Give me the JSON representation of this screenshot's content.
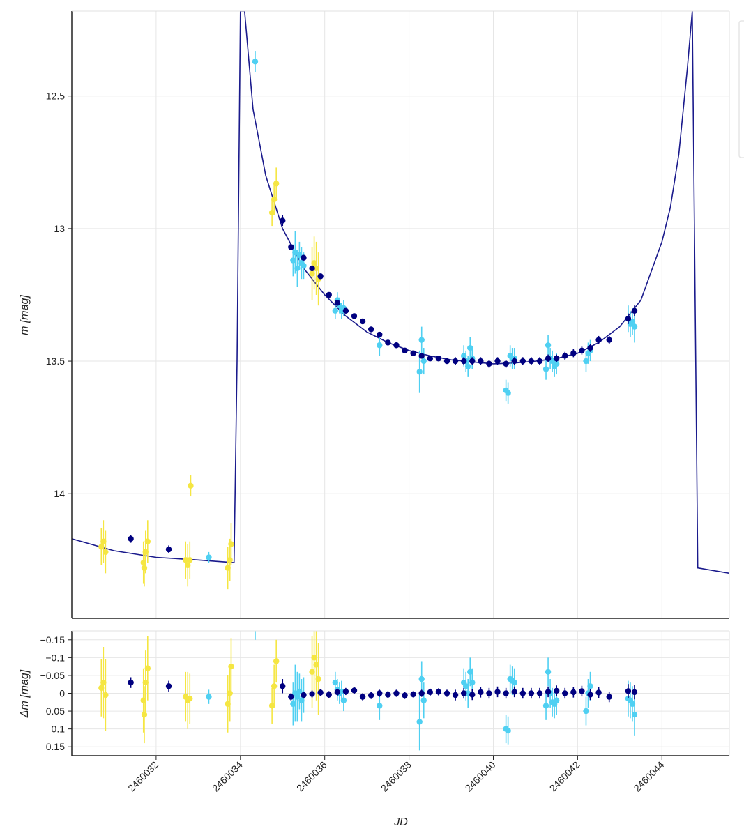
{
  "colors": {
    "model": "#1a1a8c",
    "g_band": "#000080",
    "r_band": "#4fd0f2",
    "i_band": "#f5e642",
    "grid": "#e6e6e6",
    "axis": "#222222",
    "legend_border": "#e5e5e5"
  },
  "chart_data": [
    {
      "type": "scatter",
      "panel": "main",
      "xlabel": "",
      "ylabel": "m [mag]",
      "xlim": [
        2460030.0,
        2460045.6
      ],
      "ylim": [
        14.47,
        12.18
      ],
      "y_inverted": true,
      "x_ticks": [
        2460032,
        2460034,
        2460036,
        2460038,
        2460040,
        2460042,
        2460044
      ],
      "y_ticks": [
        12.5,
        13,
        13.5,
        14
      ],
      "y_tick_labels": [
        "12.5",
        "13",
        "13.5",
        "14"
      ],
      "grid": true,
      "legend": "top-right (cut off)",
      "model_curve": {
        "x": [
          2460030.0,
          2460031.0,
          2460032.0,
          2460033.0,
          2460033.85,
          2460033.92,
          2460034.0,
          2460034.1,
          2460034.3,
          2460034.6,
          2460035.0,
          2460035.5,
          2460036.0,
          2460036.5,
          2460037.0,
          2460037.5,
          2460038.0,
          2460038.5,
          2460039.0,
          2460039.5,
          2460040.0,
          2460040.5,
          2460041.0,
          2460041.5,
          2460042.0,
          2460042.5,
          2460043.0,
          2460043.5,
          2460044.0,
          2460044.2,
          2460044.4,
          2460044.6,
          2460044.72,
          2460044.85,
          2460045.6
        ],
        "y": [
          14.17,
          14.215,
          14.24,
          14.25,
          14.26,
          13.5,
          12.18,
          12.18,
          12.55,
          12.8,
          13.0,
          13.15,
          13.25,
          13.33,
          13.39,
          13.43,
          13.46,
          13.48,
          13.495,
          13.503,
          13.51,
          13.507,
          13.5,
          13.49,
          13.47,
          13.43,
          13.37,
          13.27,
          13.05,
          12.92,
          12.72,
          12.4,
          12.18,
          14.28,
          14.3
        ]
      },
      "series": [
        {
          "band": "g",
          "x": [
            2460031.4,
            2460032.3,
            2460035.0,
            2460035.2,
            2460035.5,
            2460035.7,
            2460035.9,
            2460036.1,
            2460036.3,
            2460036.5,
            2460036.7,
            2460036.9,
            2460037.1,
            2460037.3,
            2460037.5,
            2460037.7,
            2460037.9,
            2460038.1,
            2460038.3,
            2460038.5,
            2460038.7,
            2460038.9,
            2460039.1,
            2460039.3,
            2460039.5,
            2460039.7,
            2460039.9,
            2460040.1,
            2460040.3,
            2460040.5,
            2460040.7,
            2460040.9,
            2460041.1,
            2460041.3,
            2460041.5,
            2460041.7,
            2460041.9,
            2460042.1,
            2460042.3,
            2460042.5,
            2460042.75,
            2460043.2,
            2460043.35
          ],
          "y": [
            14.17,
            14.21,
            12.97,
            13.07,
            13.11,
            13.15,
            13.18,
            13.25,
            13.28,
            13.31,
            13.33,
            13.35,
            13.38,
            13.4,
            13.43,
            13.44,
            13.46,
            13.47,
            13.48,
            13.49,
            13.49,
            13.5,
            13.5,
            13.5,
            13.5,
            13.5,
            13.51,
            13.5,
            13.51,
            13.5,
            13.5,
            13.5,
            13.5,
            13.49,
            13.49,
            13.48,
            13.47,
            13.46,
            13.45,
            13.42,
            13.42,
            13.34,
            13.31
          ],
          "err": [
            0.015,
            0.015,
            0.02,
            0.01,
            0.01,
            0.01,
            0.01,
            0.01,
            0.01,
            0.01,
            0.01,
            0.01,
            0.01,
            0.01,
            0.01,
            0.01,
            0.01,
            0.01,
            0.01,
            0.01,
            0.01,
            0.01,
            0.015,
            0.015,
            0.015,
            0.015,
            0.015,
            0.015,
            0.015,
            0.015,
            0.015,
            0.015,
            0.015,
            0.015,
            0.015,
            0.015,
            0.015,
            0.015,
            0.015,
            0.015,
            0.015,
            0.02,
            0.02
          ]
        },
        {
          "band": "r",
          "x": [
            2460033.25,
            2460034.35,
            2460035.25,
            2460035.3,
            2460035.35,
            2460035.4,
            2460035.45,
            2460035.5,
            2460036.25,
            2460036.3,
            2460036.35,
            2460036.4,
            2460036.45,
            2460037.3,
            2460038.25,
            2460038.3,
            2460038.35,
            2460039.3,
            2460039.35,
            2460039.4,
            2460039.45,
            2460039.5,
            2460040.3,
            2460040.35,
            2460040.4,
            2460040.45,
            2460040.5,
            2460041.25,
            2460041.3,
            2460041.35,
            2460041.4,
            2460041.45,
            2460041.5,
            2460042.2,
            2460042.25,
            2460042.3,
            2460043.2,
            2460043.25,
            2460043.3,
            2460043.35
          ],
          "y": [
            14.24,
            12.37,
            13.12,
            13.09,
            13.15,
            13.1,
            13.13,
            13.14,
            13.31,
            13.27,
            13.29,
            13.31,
            13.3,
            13.44,
            13.54,
            13.42,
            13.5,
            13.48,
            13.5,
            13.52,
            13.45,
            13.49,
            13.61,
            13.62,
            13.48,
            13.49,
            13.49,
            13.53,
            13.44,
            13.49,
            13.5,
            13.52,
            13.51,
            13.5,
            13.47,
            13.46,
            13.34,
            13.36,
            13.35,
            13.37
          ],
          "err": [
            0.02,
            0.04,
            0.06,
            0.08,
            0.07,
            0.05,
            0.06,
            0.05,
            0.03,
            0.03,
            0.03,
            0.03,
            0.03,
            0.04,
            0.08,
            0.05,
            0.05,
            0.04,
            0.04,
            0.04,
            0.04,
            0.04,
            0.04,
            0.04,
            0.04,
            0.04,
            0.04,
            0.04,
            0.04,
            0.04,
            0.04,
            0.04,
            0.04,
            0.04,
            0.04,
            0.04,
            0.05,
            0.05,
            0.05,
            0.06
          ]
        },
        {
          "band": "i",
          "x": [
            2460030.7,
            2460030.75,
            2460030.8,
            2460031.7,
            2460031.75,
            2460031.8,
            2460031.72,
            2460032.7,
            2460032.75,
            2460032.8,
            2460032.82,
            2460033.7,
            2460033.75,
            2460033.78,
            2460034.75,
            2460034.8,
            2460034.85,
            2460035.7,
            2460035.75,
            2460035.8,
            2460035.85
          ],
          "y": [
            14.2,
            14.18,
            14.22,
            14.26,
            14.22,
            14.18,
            14.28,
            14.25,
            14.27,
            14.25,
            13.97,
            14.28,
            14.25,
            14.19,
            12.94,
            12.89,
            12.83,
            13.17,
            13.13,
            13.15,
            13.19
          ],
          "err": [
            0.07,
            0.08,
            0.08,
            0.08,
            0.08,
            0.08,
            0.07,
            0.07,
            0.08,
            0.07,
            0.04,
            0.08,
            0.08,
            0.08,
            0.05,
            0.06,
            0.06,
            0.1,
            0.1,
            0.1,
            0.1
          ]
        }
      ]
    },
    {
      "type": "scatter",
      "panel": "residuals",
      "xlabel": "JD",
      "ylabel": "Δm [mag]",
      "xlim": [
        2460030.0,
        2460045.6
      ],
      "ylim": [
        0.175,
        -0.175
      ],
      "y_inverted": true,
      "x_ticks": [
        2460032,
        2460034,
        2460036,
        2460038,
        2460040,
        2460042,
        2460044
      ],
      "x_tick_labels": [
        "2460032",
        "2460034",
        "2460036",
        "2460038",
        "2460040",
        "2460042",
        "2460044"
      ],
      "y_ticks": [
        -0.15,
        -0.1,
        -0.05,
        0,
        0.05,
        0.1,
        0.15
      ],
      "y_tick_labels": [
        "−0.15",
        "−0.1",
        "−0.05",
        "0",
        "0.05",
        "0.1",
        "0.15"
      ],
      "grid": true,
      "series": [
        {
          "band": "g",
          "x": [
            2460031.4,
            2460032.3,
            2460035.0,
            2460035.2,
            2460035.5,
            2460035.7,
            2460035.9,
            2460036.1,
            2460036.3,
            2460036.5,
            2460036.7,
            2460036.9,
            2460037.1,
            2460037.3,
            2460037.5,
            2460037.7,
            2460037.9,
            2460038.1,
            2460038.3,
            2460038.5,
            2460038.7,
            2460038.9,
            2460039.1,
            2460039.3,
            2460039.5,
            2460039.7,
            2460039.9,
            2460040.1,
            2460040.3,
            2460040.5,
            2460040.7,
            2460040.9,
            2460041.1,
            2460041.3,
            2460041.5,
            2460041.7,
            2460041.9,
            2460042.1,
            2460042.3,
            2460042.5,
            2460042.75,
            2460043.2,
            2460043.35
          ],
          "y": [
            -0.03,
            -0.02,
            -0.02,
            0.01,
            0.005,
            0.002,
            -0.002,
            0.004,
            -0.003,
            -0.005,
            -0.008,
            0.01,
            0.006,
            0.0,
            0.004,
            0.0,
            0.006,
            0.003,
            0.0,
            -0.003,
            -0.004,
            0.0,
            0.005,
            0.0,
            0.004,
            -0.003,
            0.0,
            -0.004,
            0.0,
            -0.004,
            0.0,
            0.0,
            0.0,
            -0.004,
            -0.007,
            0.0,
            -0.003,
            -0.006,
            0.004,
            -0.002,
            0.01,
            -0.006,
            -0.003
          ],
          "err": [
            0.015,
            0.015,
            0.02,
            0.01,
            0.01,
            0.01,
            0.01,
            0.01,
            0.01,
            0.01,
            0.01,
            0.01,
            0.01,
            0.01,
            0.01,
            0.01,
            0.01,
            0.01,
            0.01,
            0.01,
            0.01,
            0.01,
            0.015,
            0.015,
            0.015,
            0.015,
            0.015,
            0.015,
            0.015,
            0.015,
            0.015,
            0.015,
            0.015,
            0.015,
            0.015,
            0.015,
            0.015,
            0.015,
            0.015,
            0.015,
            0.015,
            0.02,
            0.02
          ]
        },
        {
          "band": "r",
          "x": [
            2460033.25,
            2460034.35,
            2460035.25,
            2460035.3,
            2460035.35,
            2460035.4,
            2460035.45,
            2460035.5,
            2460036.25,
            2460036.3,
            2460036.35,
            2460036.4,
            2460036.45,
            2460037.3,
            2460038.25,
            2460038.3,
            2460038.35,
            2460039.3,
            2460039.35,
            2460039.4,
            2460039.45,
            2460039.5,
            2460040.3,
            2460040.35,
            2460040.4,
            2460040.45,
            2460040.5,
            2460041.25,
            2460041.3,
            2460041.35,
            2460041.4,
            2460041.45,
            2460041.5,
            2460042.2,
            2460042.25,
            2460042.3,
            2460043.2,
            2460043.25,
            2460043.3,
            2460043.35
          ],
          "y": [
            0.01,
            -0.19,
            0.03,
            0.0,
            0.01,
            -0.005,
            0.02,
            0.005,
            -0.03,
            -0.01,
            0.0,
            -0.005,
            0.02,
            0.035,
            0.08,
            -0.04,
            0.02,
            -0.03,
            -0.02,
            0.0,
            -0.06,
            -0.03,
            0.1,
            0.105,
            -0.04,
            -0.035,
            -0.03,
            0.035,
            -0.06,
            0.0,
            0.025,
            0.03,
            0.02,
            0.05,
            0.0,
            -0.02,
            0.015,
            0.02,
            0.03,
            0.06
          ],
          "err": [
            0.02,
            0.04,
            0.06,
            0.08,
            0.07,
            0.05,
            0.06,
            0.05,
            0.03,
            0.03,
            0.03,
            0.03,
            0.03,
            0.04,
            0.08,
            0.05,
            0.05,
            0.04,
            0.04,
            0.04,
            0.04,
            0.04,
            0.04,
            0.04,
            0.04,
            0.04,
            0.04,
            0.04,
            0.04,
            0.04,
            0.04,
            0.04,
            0.04,
            0.04,
            0.04,
            0.04,
            0.05,
            0.05,
            0.05,
            0.06
          ]
        },
        {
          "band": "i",
          "x": [
            2460030.7,
            2460030.75,
            2460030.8,
            2460031.7,
            2460031.75,
            2460031.8,
            2460031.72,
            2460032.7,
            2460032.75,
            2460032.8,
            2460033.7,
            2460033.75,
            2460033.78,
            2460034.75,
            2460034.8,
            2460034.85,
            2460035.7,
            2460035.75,
            2460035.8,
            2460035.85
          ],
          "y": [
            -0.015,
            -0.03,
            0.005,
            0.02,
            -0.03,
            -0.07,
            0.06,
            0.01,
            0.02,
            0.015,
            0.03,
            0.0,
            -0.075,
            0.035,
            -0.02,
            -0.09,
            -0.06,
            -0.1,
            -0.08,
            -0.04
          ],
          "err": [
            0.08,
            0.1,
            0.1,
            0.09,
            0.09,
            0.09,
            0.08,
            0.07,
            0.08,
            0.07,
            0.08,
            0.08,
            0.08,
            0.05,
            0.06,
            0.06,
            0.1,
            0.1,
            0.1,
            0.1
          ]
        }
      ]
    }
  ]
}
